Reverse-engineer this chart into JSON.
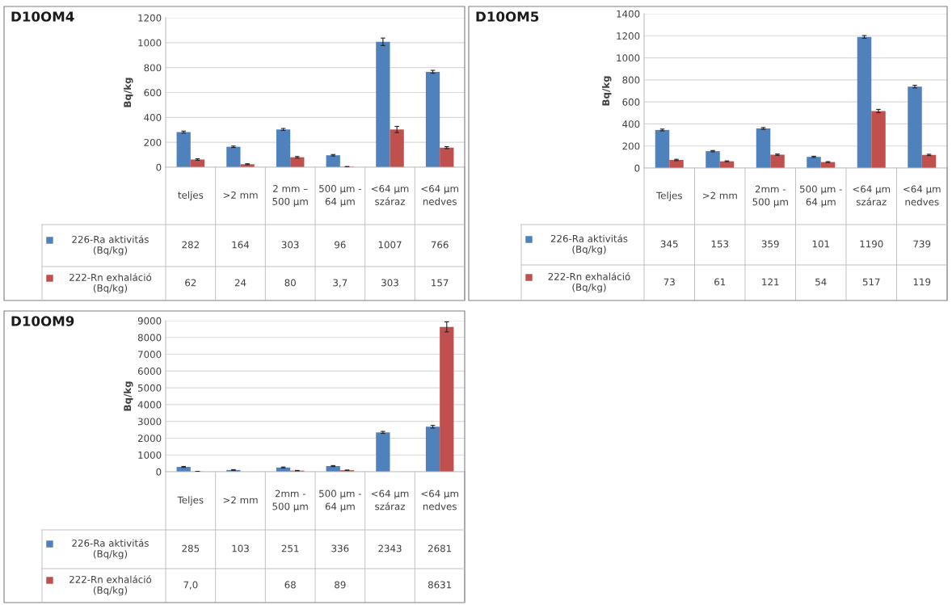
{
  "chart_data": [
    {
      "type": "bar",
      "title": "D10OM4",
      "ylabel": "Bq/kg",
      "categories": [
        "teljes",
        ">2 mm",
        "2 mm – 500 µm",
        "500 µm - 64 µm",
        "<64 µm száraz",
        "<64 µm nedves"
      ],
      "ylim": [
        0,
        1200
      ],
      "yticks": [
        0,
        200,
        400,
        600,
        800,
        1000,
        1200
      ],
      "grid": "y",
      "legend": "bottom",
      "series": [
        {
          "name": "226-Ra aktivitás (Bq/kg)",
          "color": "#4f81bd",
          "values": [
            282,
            164,
            303,
            96,
            1007,
            766
          ],
          "errors": [
            8,
            6,
            8,
            6,
            30,
            12
          ],
          "value_labels": [
            "282",
            "164",
            "303",
            "96",
            "1007",
            "766"
          ]
        },
        {
          "name": "222-Rn exhaláció (Bq/kg)",
          "color": "#c0504d",
          "values": [
            62,
            24,
            80,
            3.7,
            303,
            157
          ],
          "errors": [
            6,
            4,
            6,
            2,
            25,
            8
          ],
          "value_labels": [
            "62",
            "24",
            "80",
            "3,7",
            "303",
            "157"
          ]
        }
      ]
    },
    {
      "type": "bar",
      "title": "D10OM5",
      "ylabel": "Bq/kg",
      "categories": [
        "Teljes",
        ">2 mm",
        "2mm - 500 µm",
        "500 µm - 64 µm",
        "<64 µm száraz",
        "<64 µm nedves"
      ],
      "ylim": [
        0,
        1400
      ],
      "yticks": [
        0,
        200,
        400,
        600,
        800,
        1000,
        1200,
        1400
      ],
      "grid": "y",
      "legend": "bottom",
      "series": [
        {
          "name": "226-Ra aktivitás (Bq/kg)",
          "color": "#4f81bd",
          "values": [
            345,
            153,
            359,
            101,
            1190,
            739
          ],
          "errors": [
            8,
            6,
            8,
            6,
            12,
            12
          ],
          "value_labels": [
            "345",
            "153",
            "359",
            "101",
            "1190",
            "739"
          ]
        },
        {
          "name": "222-Rn exhaláció (Bq/kg)",
          "color": "#c0504d",
          "values": [
            73,
            61,
            121,
            54,
            517,
            119
          ],
          "errors": [
            6,
            4,
            6,
            4,
            15,
            6
          ],
          "value_labels": [
            "73",
            "61",
            "121",
            "54",
            "517",
            "119"
          ]
        }
      ]
    },
    {
      "type": "bar",
      "title": "D10OM9",
      "ylabel": "Bq/kg",
      "categories": [
        "Teljes",
        ">2 mm",
        "2mm - 500 µm",
        "500 µm - 64 µm",
        "<64 µm száraz",
        "<64 µm nedves"
      ],
      "ylim": [
        0,
        9000
      ],
      "yticks": [
        0,
        1000,
        2000,
        3000,
        4000,
        5000,
        6000,
        7000,
        8000,
        9000
      ],
      "grid": "y",
      "legend": "bottom",
      "series": [
        {
          "name": "226-Ra aktivitás (Bq/kg)",
          "color": "#4f81bd",
          "values": [
            285,
            103,
            251,
            336,
            2343,
            2681
          ],
          "errors": [
            30,
            20,
            30,
            30,
            60,
            80
          ],
          "value_labels": [
            "285",
            "103",
            "251",
            "336",
            "2343",
            "2681"
          ]
        },
        {
          "name": "222-Rn exhaláció (Bq/kg)",
          "color": "#c0504d",
          "values": [
            7.0,
            null,
            68,
            89,
            null,
            8631
          ],
          "errors": [
            5,
            null,
            10,
            10,
            null,
            300
          ],
          "value_labels": [
            "7,0",
            null,
            "68",
            "89",
            null,
            "8631"
          ]
        }
      ]
    }
  ]
}
